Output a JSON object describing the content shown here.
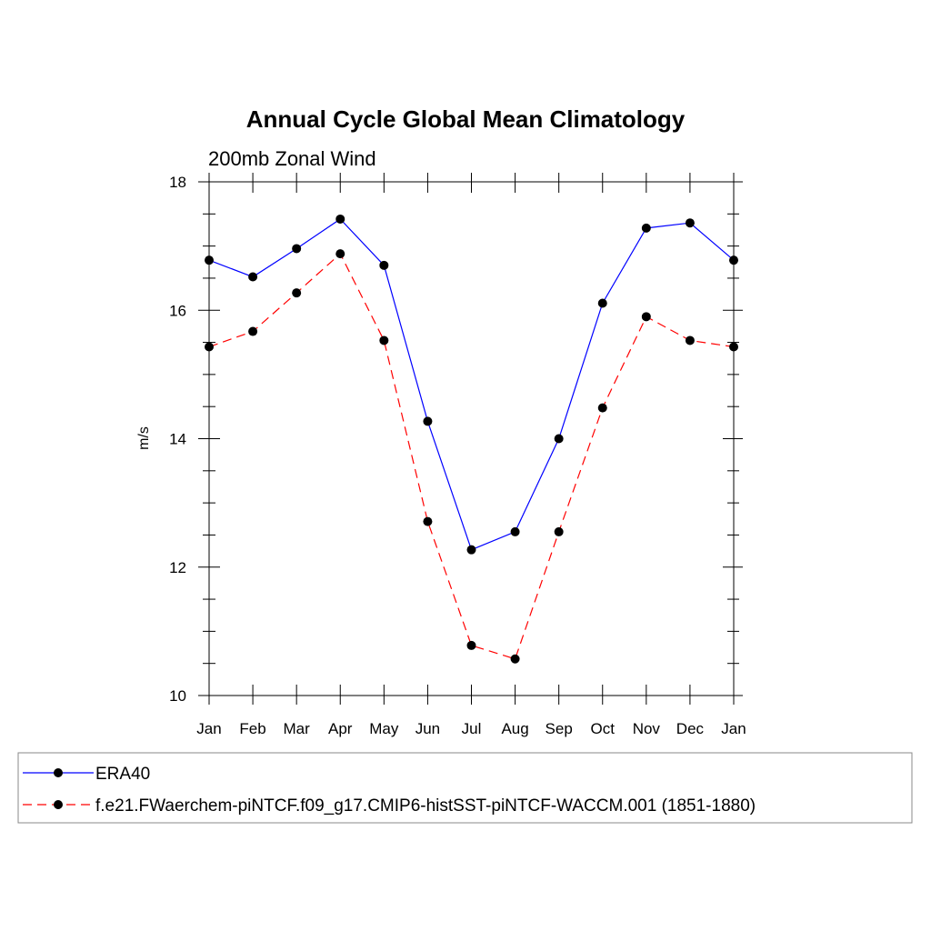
{
  "chart_data": {
    "type": "line",
    "title": "Annual Cycle Global Mean Climatology",
    "subtitle": "200mb Zonal Wind",
    "xlabel": "",
    "ylabel": "m/s",
    "categories": [
      "Jan",
      "Feb",
      "Mar",
      "Apr",
      "May",
      "Jun",
      "Jul",
      "Aug",
      "Sep",
      "Oct",
      "Nov",
      "Dec",
      "Jan"
    ],
    "ylim": [
      10,
      18
    ],
    "yticks": [
      10,
      12,
      14,
      16,
      18
    ],
    "grid": false,
    "legend_position": "bottom",
    "series": [
      {
        "name": "ERA40",
        "color": "#0000ff",
        "dash": "solid",
        "marker": "filled-circle",
        "values": [
          16.78,
          16.52,
          16.96,
          17.42,
          16.7,
          14.27,
          12.27,
          12.55,
          14.0,
          16.11,
          17.28,
          17.36,
          16.78
        ]
      },
      {
        "name": "f.e21.FWaerchem-piNTCF.f09_g17.CMIP6-histSST-piNTCF-WACCM.001 (1851-1880)",
        "color": "#ff0000",
        "dash": "dashed",
        "marker": "filled-circle",
        "values": [
          15.43,
          15.67,
          16.27,
          16.88,
          15.53,
          12.71,
          10.78,
          10.57,
          12.55,
          14.48,
          15.9,
          15.53,
          15.43
        ]
      }
    ]
  }
}
